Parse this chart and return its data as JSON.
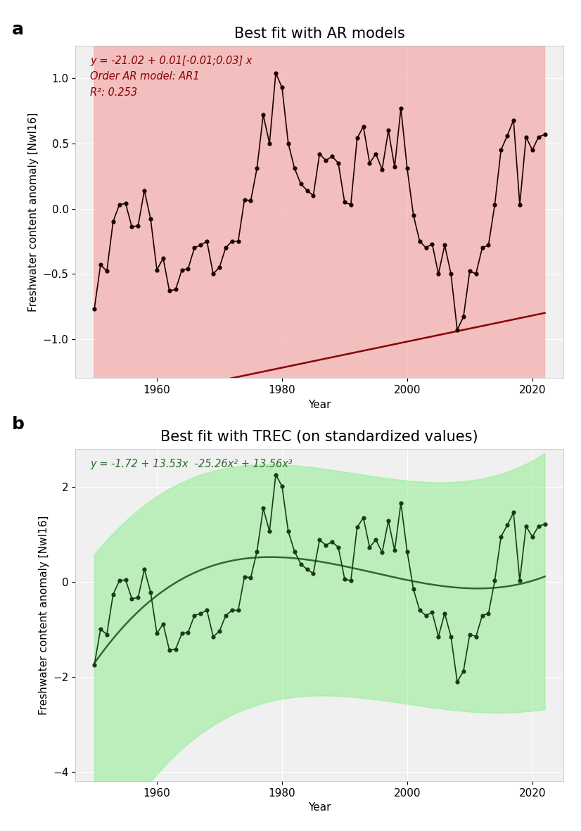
{
  "title_a": "Best fit with AR models",
  "title_b": "Best fit with TREC (on standardized values)",
  "ylabel": "Freshwater content anomaly [NwI16]",
  "xlabel": "Year",
  "label_a": "a",
  "label_b": "b",
  "annotation_a_line1": "y = -21.02 + 0.01[-0.01;0.03] x",
  "annotation_a_line2": "Order AR model: AR1",
  "annotation_a_line3": "R²: 0.253",
  "annotation_b": "y = -1.72 + 13.53x  -25.26x² + 13.56x³",
  "years": [
    1950,
    1951,
    1952,
    1953,
    1954,
    1955,
    1956,
    1957,
    1958,
    1959,
    1960,
    1961,
    1962,
    1963,
    1964,
    1965,
    1966,
    1967,
    1968,
    1969,
    1970,
    1971,
    1972,
    1973,
    1974,
    1975,
    1976,
    1977,
    1978,
    1979,
    1980,
    1981,
    1982,
    1983,
    1984,
    1985,
    1986,
    1987,
    1988,
    1989,
    1990,
    1991,
    1992,
    1993,
    1994,
    1995,
    1996,
    1997,
    1998,
    1999,
    2000,
    2001,
    2002,
    2003,
    2004,
    2005,
    2006,
    2007,
    2008,
    2009,
    2010,
    2011,
    2012,
    2013,
    2014,
    2015,
    2016,
    2017,
    2018,
    2019,
    2020,
    2021,
    2022
  ],
  "values_a": [
    -0.77,
    -0.43,
    -0.48,
    -0.1,
    0.03,
    0.04,
    -0.14,
    -0.13,
    0.14,
    -0.08,
    -0.47,
    -0.38,
    -0.63,
    -0.62,
    -0.47,
    -0.46,
    -0.3,
    -0.28,
    -0.25,
    -0.5,
    -0.45,
    -0.3,
    -0.25,
    -0.25,
    0.07,
    0.06,
    0.31,
    0.72,
    0.5,
    1.04,
    0.93,
    0.5,
    0.31,
    0.19,
    0.14,
    0.1,
    0.42,
    0.37,
    0.4,
    0.35,
    0.05,
    0.03,
    0.54,
    0.63,
    0.35,
    0.42,
    0.3,
    0.6,
    0.32,
    0.77,
    0.31,
    -0.05,
    -0.25,
    -0.3,
    -0.27,
    -0.5,
    -0.28,
    -0.5,
    -0.93,
    -0.83,
    -0.48,
    -0.5,
    -0.3,
    -0.28,
    0.03,
    0.45,
    0.56,
    0.68,
    0.03,
    0.55,
    0.45,
    0.55,
    0.57
  ],
  "slope_a": 0.01,
  "line_color_a": "#8B0000",
  "fill_color_a": "#f4aaaa",
  "data_color_a": "#1a0000",
  "coef_b0": -1.72,
  "coef_b1": 13.53,
  "coef_b2": -25.26,
  "coef_b3": 13.56,
  "line_color_b": "#2d6a2d",
  "fill_color_b": "#90EE90",
  "data_color_b": "#1a3a1a",
  "ylim_a": [
    -1.3,
    1.25
  ],
  "ylim_b": [
    -4.2,
    2.8
  ],
  "yticks_a": [
    -1.0,
    -0.5,
    0.0,
    0.5,
    1.0
  ],
  "yticks_b": [
    -4,
    -2,
    0,
    2
  ],
  "xlim": [
    1947,
    2025
  ],
  "xticks": [
    1960,
    1980,
    2000,
    2020
  ],
  "bg_color": "#f0f0f0",
  "grid_color": "#ffffff",
  "title_fontsize": 15,
  "label_fontsize": 11,
  "tick_fontsize": 11,
  "annot_fontsize": 10.5
}
